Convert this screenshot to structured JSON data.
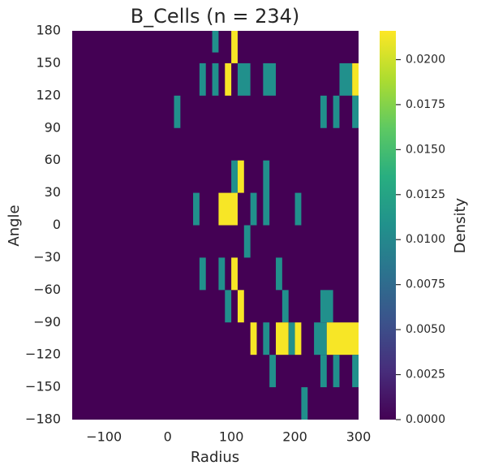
{
  "chart_data": {
    "type": "heatmap",
    "title": "B_Cells (n = 234)",
    "x_label": "Radius",
    "y_label": "Angle",
    "colorbar_label": "Density",
    "colormap": "viridis",
    "xlim": [
      -150,
      300
    ],
    "ylim": [
      -180,
      180
    ],
    "xticks": [
      {
        "value": -100,
        "label": "−100"
      },
      0,
      100,
      200,
      300
    ],
    "yticks": [
      180,
      150,
      120,
      90,
      60,
      30,
      0,
      {
        "value": -30,
        "label": "−30"
      },
      {
        "value": -60,
        "label": "−60"
      },
      {
        "value": -90,
        "label": "−90"
      },
      {
        "value": -120,
        "label": "−120"
      },
      {
        "value": -150,
        "label": "−150"
      },
      {
        "value": -180,
        "label": "−180"
      }
    ],
    "clim": [
      0,
      0.0216
    ],
    "cticks": [
      {
        "value": 0,
        "label": "0.0000"
      },
      {
        "value": 0.0025,
        "label": "0.0025"
      },
      {
        "value": 0.005,
        "label": "0.0050"
      },
      {
        "value": 0.0075,
        "label": "0.0075"
      },
      {
        "value": 0.01,
        "label": "0.0100"
      },
      {
        "value": 0.0125,
        "label": "0.0125"
      },
      {
        "value": 0.015,
        "label": "0.0150"
      },
      {
        "value": 0.0175,
        "label": "0.0175"
      },
      {
        "value": 0.02,
        "label": "0.0200"
      }
    ],
    "cells": [
      {
        "x": [
          70,
          80
        ],
        "y": [
          160,
          180
        ],
        "value": 0.0107
      },
      {
        "x": [
          100,
          110
        ],
        "y": [
          150,
          180
        ],
        "value": 0.0214
      },
      {
        "x": [
          50,
          60
        ],
        "y": [
          120,
          150
        ],
        "value": 0.0107
      },
      {
        "x": [
          70,
          80
        ],
        "y": [
          120,
          150
        ],
        "value": 0.0107
      },
      {
        "x": [
          90,
          100
        ],
        "y": [
          120,
          150
        ],
        "value": 0.0214
      },
      {
        "x": [
          110,
          130
        ],
        "y": [
          120,
          150
        ],
        "value": 0.0107
      },
      {
        "x": [
          150,
          170
        ],
        "y": [
          120,
          150
        ],
        "value": 0.0107
      },
      {
        "x": [
          270,
          290
        ],
        "y": [
          120,
          150
        ],
        "value": 0.0107
      },
      {
        "x": [
          290,
          300
        ],
        "y": [
          120,
          150
        ],
        "value": 0.0214
      },
      {
        "x": [
          10,
          20
        ],
        "y": [
          90,
          120
        ],
        "value": 0.0107
      },
      {
        "x": [
          240,
          250
        ],
        "y": [
          90,
          120
        ],
        "value": 0.0107
      },
      {
        "x": [
          260,
          270
        ],
        "y": [
          90,
          120
        ],
        "value": 0.0107
      },
      {
        "x": [
          290,
          300
        ],
        "y": [
          90,
          120
        ],
        "value": 0.0107
      },
      {
        "x": [
          100,
          110
        ],
        "y": [
          30,
          60
        ],
        "value": 0.0107
      },
      {
        "x": [
          110,
          120
        ],
        "y": [
          30,
          60
        ],
        "value": 0.0214
      },
      {
        "x": [
          150,
          160
        ],
        "y": [
          0,
          60
        ],
        "value": 0.0107
      },
      {
        "x": [
          40,
          50
        ],
        "y": [
          0,
          30
        ],
        "value": 0.0107
      },
      {
        "x": [
          80,
          110
        ],
        "y": [
          0,
          30
        ],
        "value": 0.0214
      },
      {
        "x": [
          130,
          140
        ],
        "y": [
          0,
          30
        ],
        "value": 0.0107
      },
      {
        "x": [
          200,
          210
        ],
        "y": [
          0,
          30
        ],
        "value": 0.0107
      },
      {
        "x": [
          120,
          130
        ],
        "y": [
          -30,
          0
        ],
        "value": 0.0107
      },
      {
        "x": [
          50,
          60
        ],
        "y": [
          -60,
          -30
        ],
        "value": 0.0107
      },
      {
        "x": [
          80,
          90
        ],
        "y": [
          -60,
          -30
        ],
        "value": 0.0107
      },
      {
        "x": [
          100,
          110
        ],
        "y": [
          -60,
          -30
        ],
        "value": 0.0214
      },
      {
        "x": [
          170,
          180
        ],
        "y": [
          -60,
          -30
        ],
        "value": 0.0107
      },
      {
        "x": [
          90,
          100
        ],
        "y": [
          -90,
          -60
        ],
        "value": 0.0107
      },
      {
        "x": [
          110,
          120
        ],
        "y": [
          -90,
          -60
        ],
        "value": 0.0214
      },
      {
        "x": [
          180,
          190
        ],
        "y": [
          -90,
          -60
        ],
        "value": 0.0107
      },
      {
        "x": [
          240,
          260
        ],
        "y": [
          -90,
          -60
        ],
        "value": 0.0107
      },
      {
        "x": [
          130,
          140
        ],
        "y": [
          -120,
          -90
        ],
        "value": 0.0214
      },
      {
        "x": [
          150,
          160
        ],
        "y": [
          -120,
          -90
        ],
        "value": 0.0107
      },
      {
        "x": [
          170,
          190
        ],
        "y": [
          -120,
          -90
        ],
        "value": 0.0214
      },
      {
        "x": [
          190,
          200
        ],
        "y": [
          -120,
          -90
        ],
        "value": 0.0107
      },
      {
        "x": [
          200,
          210
        ],
        "y": [
          -120,
          -90
        ],
        "value": 0.0214
      },
      {
        "x": [
          230,
          250
        ],
        "y": [
          -120,
          -90
        ],
        "value": 0.0107
      },
      {
        "x": [
          250,
          300
        ],
        "y": [
          -120,
          -90
        ],
        "value": 0.0214
      },
      {
        "x": [
          160,
          170
        ],
        "y": [
          -150,
          -120
        ],
        "value": 0.0107
      },
      {
        "x": [
          240,
          250
        ],
        "y": [
          -150,
          -120
        ],
        "value": 0.0107
      },
      {
        "x": [
          260,
          270
        ],
        "y": [
          -150,
          -120
        ],
        "value": 0.0107
      },
      {
        "x": [
          290,
          300
        ],
        "y": [
          -150,
          -120
        ],
        "value": 0.0107
      },
      {
        "x": [
          210,
          220
        ],
        "y": [
          -180,
          -150
        ],
        "value": 0.0107
      }
    ]
  }
}
